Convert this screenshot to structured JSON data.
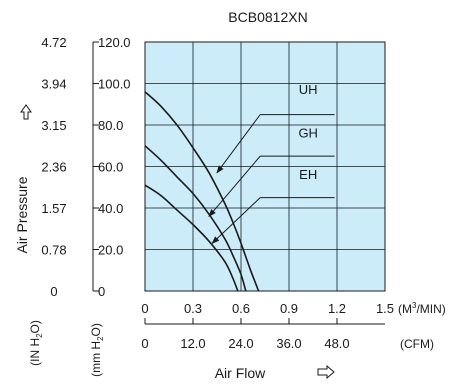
{
  "chart_data": {
    "type": "line",
    "title": "BCB0812XN",
    "ylabel": "Air Pressure",
    "xlabel": "Air Flow",
    "background_color": "#ccecfa",
    "line_color": "#1a1a1a",
    "grid": true,
    "x_axis_m3min": {
      "unit": "(M3/MIN)",
      "unit_base": "(M",
      "unit_sup": "3",
      "unit_tail": "/MIN)",
      "range": [
        0,
        1.5
      ],
      "ticks": [
        "0",
        "0.3",
        "0.6",
        "0.9",
        "1.2",
        "1.5"
      ]
    },
    "x_axis_cfm": {
      "unit": "(CFM)",
      "ticks": [
        "0",
        "12.0",
        "24.0",
        "36.0",
        "48.0"
      ],
      "tick_values": [
        0,
        12,
        24,
        36,
        48
      ]
    },
    "y_axis_mmh2o": {
      "unit": "(mm H2O)",
      "unit_base": "(mm H",
      "unit_sub": "2",
      "unit_tail": "O)",
      "range": [
        0,
        120
      ],
      "ticks": [
        "0",
        "20.0",
        "40.0",
        "60.0",
        "80.0",
        "100.0",
        "120.0"
      ]
    },
    "y_axis_inh2o": {
      "unit": "(IN H2O)",
      "unit_base": "(IN H",
      "unit_sub": "2",
      "unit_tail": "O)",
      "ticks": [
        "0",
        "0.78",
        "1.57",
        "2.36",
        "3.15",
        "3.94",
        "4.72"
      ]
    },
    "series": [
      {
        "name": "UH",
        "x": [
          0,
          0.1,
          0.2,
          0.3,
          0.4,
          0.5,
          0.55,
          0.6,
          0.66,
          0.71
        ],
        "y": [
          96,
          89,
          80,
          69,
          57,
          42,
          33,
          23,
          10,
          0
        ]
      },
      {
        "name": "GH",
        "x": [
          0,
          0.1,
          0.2,
          0.3,
          0.4,
          0.5,
          0.55,
          0.6,
          0.63
        ],
        "y": [
          70,
          63,
          55,
          47,
          37,
          25,
          17,
          8,
          0
        ]
      },
      {
        "name": "EH",
        "x": [
          0,
          0.1,
          0.2,
          0.3,
          0.4,
          0.5,
          0.55,
          0.58
        ],
        "y": [
          51,
          46,
          39,
          32,
          24,
          14,
          6,
          0
        ]
      }
    ],
    "annotations": [
      {
        "label": "UH",
        "text_at": [
          1.02,
          95
        ],
        "leader_end": [
          0.72,
          85
        ],
        "arrow_tip": [
          0.45,
          57
        ]
      },
      {
        "label": "GH",
        "text_at": [
          1.02,
          74
        ],
        "leader_end": [
          0.72,
          65
        ],
        "arrow_tip": [
          0.4,
          36
        ]
      },
      {
        "label": "EH",
        "text_at": [
          1.02,
          54
        ],
        "leader_end": [
          0.72,
          45
        ],
        "arrow_tip": [
          0.42,
          23
        ]
      }
    ]
  }
}
